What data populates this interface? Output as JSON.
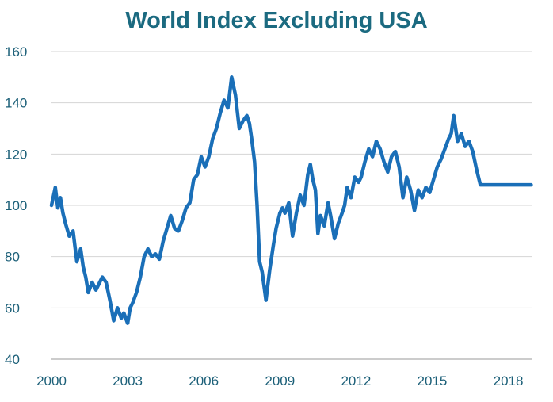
{
  "chart_data": {
    "type": "line",
    "title": "World Index Excluding USA",
    "xlabel": "",
    "ylabel": "",
    "xlim": [
      2000,
      2018.95
    ],
    "ylim": [
      40,
      160
    ],
    "x_ticks": [
      2000,
      2003,
      2006,
      2009,
      2012,
      2015,
      2018
    ],
    "y_ticks": [
      40,
      60,
      80,
      100,
      120,
      140,
      160
    ],
    "grid": "horizontal",
    "line_color": "#1a6fb8",
    "series": [
      {
        "name": "",
        "x": [
          2000.0,
          2000.15,
          2000.25,
          2000.35,
          2000.45,
          2000.55,
          2000.7,
          2000.85,
          2001.0,
          2001.15,
          2001.25,
          2001.35,
          2001.45,
          2001.6,
          2001.75,
          2001.9,
          2002.0,
          2002.15,
          2002.3,
          2002.45,
          2002.6,
          2002.75,
          2002.85,
          2003.0,
          2003.1,
          2003.2,
          2003.35,
          2003.5,
          2003.65,
          2003.8,
          2003.95,
          2004.1,
          2004.25,
          2004.4,
          2004.55,
          2004.7,
          2004.85,
          2005.0,
          2005.15,
          2005.3,
          2005.45,
          2005.6,
          2005.75,
          2005.9,
          2006.05,
          2006.2,
          2006.35,
          2006.5,
          2006.65,
          2006.8,
          2006.95,
          2007.1,
          2007.25,
          2007.4,
          2007.55,
          2007.7,
          2007.8,
          2007.9,
          2008.0,
          2008.1,
          2008.2,
          2008.3,
          2008.45,
          2008.6,
          2008.75,
          2008.85,
          2009.0,
          2009.1,
          2009.2,
          2009.35,
          2009.5,
          2009.65,
          2009.8,
          2009.95,
          2010.1,
          2010.2,
          2010.3,
          2010.4,
          2010.5,
          2010.6,
          2010.75,
          2010.9,
          2011.0,
          2011.15,
          2011.3,
          2011.45,
          2011.55,
          2011.65,
          2011.8,
          2011.95,
          2012.1,
          2012.2,
          2012.35,
          2012.5,
          2012.65,
          2012.8,
          2012.95,
          2013.1,
          2013.25,
          2013.4,
          2013.55,
          2013.7,
          2013.85,
          2014.0,
          2014.15,
          2014.3,
          2014.45,
          2014.6,
          2014.75,
          2014.9,
          2015.05,
          2015.2,
          2015.35,
          2015.5,
          2015.65,
          2015.75,
          2015.85,
          2016.0,
          2016.15,
          2016.3,
          2016.45,
          2016.6,
          2016.75,
          2016.9,
          2017.05,
          2017.2,
          2017.35,
          2017.5,
          2017.65,
          2017.8,
          2017.95,
          2018.05,
          2018.15,
          2018.25,
          2018.35,
          2018.5,
          2018.6,
          2018.7,
          2018.8,
          2018.9
        ],
        "values": [
          100,
          107,
          99,
          103,
          97,
          93,
          88,
          90,
          78,
          83,
          76,
          72,
          66,
          70,
          67,
          70,
          72,
          70,
          63,
          55,
          60,
          56,
          58,
          54,
          60,
          62,
          66,
          72,
          80,
          83,
          80,
          81,
          79,
          86,
          91,
          96,
          91,
          90,
          94,
          99,
          101,
          110,
          112,
          119,
          115,
          119,
          126,
          130,
          136,
          141,
          138,
          150,
          143,
          130,
          133,
          135,
          132,
          125,
          117,
          100,
          78,
          74,
          63,
          75,
          85,
          91,
          97,
          99,
          97,
          101,
          88,
          97,
          104,
          100,
          112,
          116,
          110,
          106,
          89,
          96,
          92,
          101,
          96,
          87,
          93,
          97,
          100,
          107,
          103,
          111,
          109,
          111,
          117,
          122,
          119,
          125,
          122,
          117,
          113,
          119,
          121,
          115,
          103,
          111,
          106,
          98,
          106,
          103,
          107,
          105,
          110,
          115,
          118,
          122,
          126,
          128,
          135,
          125,
          128,
          123,
          125,
          121,
          114,
          108,
          108,
          108,
          108,
          108,
          108,
          108,
          108,
          108,
          108,
          108,
          108,
          108,
          108,
          108,
          108,
          108
        ]
      }
    ]
  }
}
